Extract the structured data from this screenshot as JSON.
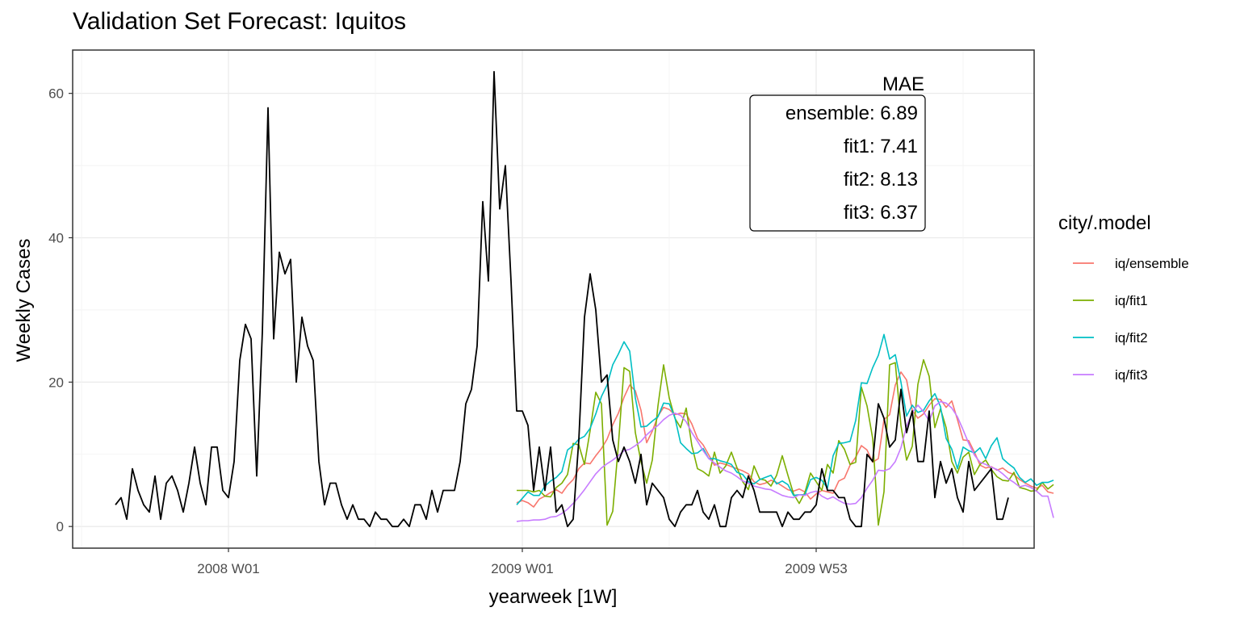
{
  "chart_data": {
    "type": "line",
    "title": "Validation Set Forecast: Iquitos",
    "xlabel": "yearweek [1W]",
    "ylabel": "Weekly Cases",
    "x_tick_labels": [
      "2008 W01",
      "2009 W01",
      "2009 W53"
    ],
    "y_ticks": [
      0,
      20,
      40,
      60
    ],
    "ylim": [
      -3,
      66
    ],
    "grid": true,
    "legend": {
      "title": "city/.model",
      "position": "right",
      "entries": [
        {
          "label": "iq/ensemble",
          "color": "#F8766D"
        },
        {
          "label": "iq/fit1",
          "color": "#7CAE00"
        },
        {
          "label": "iq/fit2",
          "color": "#00BFC4"
        },
        {
          "label": "iq/fit3",
          "color": "#C77CFF"
        }
      ]
    },
    "annotation": {
      "heading": "MAE",
      "lines": [
        "ensemble: 6.89",
        "fit1: 7.41",
        "fit2: 8.13",
        "fit3: 6.37"
      ]
    },
    "actual": {
      "color": "#000000",
      "start_week_offset": -20,
      "values": [
        3,
        4,
        1,
        8,
        5,
        3,
        2,
        7,
        1,
        6,
        7,
        5,
        2,
        6,
        11,
        6,
        3,
        11,
        11,
        5,
        4,
        9,
        23,
        28,
        26,
        7,
        27,
        58,
        26,
        38,
        35,
        37,
        20,
        29,
        25,
        23,
        9,
        3,
        6,
        6,
        3,
        1,
        3,
        1,
        1,
        0,
        2,
        1,
        1,
        0,
        0,
        1,
        0,
        3,
        3,
        1,
        5,
        2,
        5,
        5,
        5,
        9,
        17,
        19,
        25,
        45,
        34,
        63,
        44,
        50,
        34,
        16,
        16,
        14,
        5,
        11,
        5,
        11,
        2,
        3,
        0,
        1,
        12,
        29,
        35,
        30,
        20,
        21,
        12,
        9,
        11,
        9,
        6,
        10,
        3,
        6,
        5,
        4,
        1,
        0,
        2,
        3,
        3,
        5,
        2,
        1,
        3,
        0,
        0,
        4,
        5,
        4,
        7,
        5,
        2,
        2,
        2,
        2,
        0,
        2,
        1,
        1,
        2,
        2,
        3,
        8,
        5,
        5,
        4,
        4,
        1,
        0,
        0,
        10,
        9,
        17,
        15,
        11,
        12,
        19,
        13,
        16,
        9,
        9,
        16,
        4,
        9,
        6,
        8,
        4,
        2,
        9,
        5,
        6,
        7,
        8,
        1,
        1,
        4
      ]
    },
    "forecasts_start_week_offset": 51,
    "series": [
      {
        "name": "iq/ensemble",
        "color": "#F8766D",
        "values": [
          3.3,
          3.6,
          3.3,
          2.7,
          3.8,
          4.2,
          4.7,
          5.1,
          4.6,
          5.7,
          6.5,
          8.0,
          8.8,
          8.7,
          9.8,
          10.8,
          12.1,
          14.1,
          15.7,
          17.9,
          19.6,
          18.8,
          16.1,
          11.6,
          13.2,
          15.3,
          16.5,
          16.2,
          15.5,
          15.7,
          15.6,
          14.2,
          12.2,
          11.3,
          9.9,
          8.5,
          8.8,
          8.6,
          8.3,
          8.0,
          7.7,
          7.3,
          6.2,
          5.8,
          6.0,
          6.4,
          6.1,
          5.6,
          5.1,
          4.9,
          5.2,
          4.8,
          3.8,
          4.5,
          5.0,
          4.8,
          4.6,
          6.3,
          6.7,
          8.5,
          9.6,
          11.2,
          10.6,
          8.9,
          9.4,
          14.8,
          15.5,
          19.6,
          21.4,
          20.3,
          16.1,
          15.0,
          15.6,
          16.8,
          17.7,
          17.6,
          16.5,
          17.4,
          14.8,
          12.0,
          11.9,
          10.3,
          8.5,
          8.1,
          8.3,
          7.8,
          8.1,
          7.5,
          7.2,
          6.5,
          6.0,
          5.6,
          5.3,
          5.7,
          4.8,
          4.6
        ]
      },
      {
        "name": "iq/fit1",
        "color": "#7CAE00",
        "values": [
          5.0,
          5.0,
          5.0,
          4.8,
          5.0,
          4.2,
          4.1,
          5.4,
          6.0,
          7.2,
          11.5,
          11.3,
          8.6,
          13.3,
          18.6,
          17.0,
          0.2,
          2.1,
          11.3,
          22.0,
          21.5,
          13.0,
          9.0,
          6.0,
          9.2,
          16.7,
          22.4,
          17.8,
          15.0,
          13.7,
          16.4,
          11.2,
          8.0,
          7.6,
          7.0,
          10.3,
          7.4,
          8.4,
          10.3,
          8.1,
          6.2,
          5.1,
          8.4,
          6.6,
          6.4,
          5.6,
          7.1,
          9.8,
          7.1,
          4.5,
          3.2,
          4.7,
          7.4,
          6.2,
          5.0,
          8.6,
          7.4,
          11.9,
          10.7,
          8.6,
          8.9,
          19.3,
          16.7,
          12.2,
          0.2,
          4.8,
          22.4,
          22.7,
          14.0,
          9.2,
          11.1,
          19.7,
          23.1,
          20.8,
          13.7,
          16.3,
          13.7,
          9.0,
          7.4,
          9.6,
          10.3,
          7.2,
          8.6,
          9.2,
          7.9,
          6.9,
          6.4,
          6.3,
          7.5,
          5.4,
          5.2,
          4.9,
          5.0,
          6.1,
          5.2,
          5.8
        ]
      },
      {
        "name": "iq/fit2",
        "color": "#00BFC4",
        "values": [
          3.0,
          3.9,
          4.8,
          4.3,
          4.3,
          5.6,
          6.3,
          6.8,
          7.6,
          10.6,
          11.2,
          12.1,
          12.5,
          13.6,
          15.6,
          18.0,
          19.6,
          22.4,
          23.9,
          25.6,
          24.3,
          17.8,
          13.8,
          13.9,
          14.6,
          15.2,
          17.1,
          17.0,
          15.1,
          11.6,
          10.8,
          10.1,
          10.2,
          10.8,
          9.4,
          9.4,
          9.1,
          8.9,
          8.6,
          7.5,
          7.2,
          6.2,
          5.9,
          6.5,
          6.8,
          7.1,
          5.9,
          6.3,
          5.8,
          4.3,
          4.4,
          4.4,
          6.5,
          6.8,
          6.4,
          5.3,
          9.8,
          11.5,
          11.6,
          11.8,
          14.7,
          19.9,
          19.8,
          22.0,
          23.7,
          26.6,
          23.2,
          23.8,
          20.0,
          15.3,
          16.8,
          15.8,
          16.1,
          17.4,
          18.4,
          16.6,
          12.2,
          10.7,
          8.0,
          11.0,
          10.5,
          10.2,
          10.9,
          9.4,
          11.2,
          12.3,
          9.4,
          8.7,
          8.1,
          6.8,
          6.1,
          6.6,
          5.7,
          6.1,
          6.1,
          6.4
        ]
      },
      {
        "name": "iq/fit3",
        "color": "#C77CFF",
        "values": [
          0.7,
          0.8,
          0.8,
          0.9,
          0.9,
          1.0,
          1.3,
          1.4,
          1.8,
          2.4,
          3.2,
          4.1,
          5.1,
          6.2,
          7.3,
          8.1,
          8.7,
          9.2,
          9.8,
          10.5,
          10.7,
          11.2,
          11.8,
          12.7,
          13.4,
          14.0,
          14.8,
          15.4,
          15.7,
          15.4,
          14.5,
          13.0,
          11.8,
          10.5,
          9.4,
          8.8,
          8.2,
          7.7,
          7.4,
          6.9,
          6.3,
          6.0,
          5.6,
          5.4,
          5.2,
          5.1,
          4.7,
          4.3,
          4.1,
          4.0,
          4.4,
          4.3,
          4.7,
          4.9,
          4.2,
          3.8,
          4.1,
          3.6,
          3.2,
          3.1,
          3.2,
          4.0,
          5.3,
          6.4,
          7.8,
          7.7,
          8.0,
          9.0,
          10.9,
          13.9,
          15.8,
          16.8,
          15.9,
          14.6,
          16.7,
          17.3,
          17.1,
          16.4,
          15.2,
          13.4,
          11.5,
          9.9,
          8.9,
          8.6,
          8.2,
          7.9,
          7.3,
          6.6,
          6.1,
          5.5,
          5.7,
          5.4,
          4.9,
          4.2,
          4.2,
          1.2
        ]
      }
    ]
  }
}
